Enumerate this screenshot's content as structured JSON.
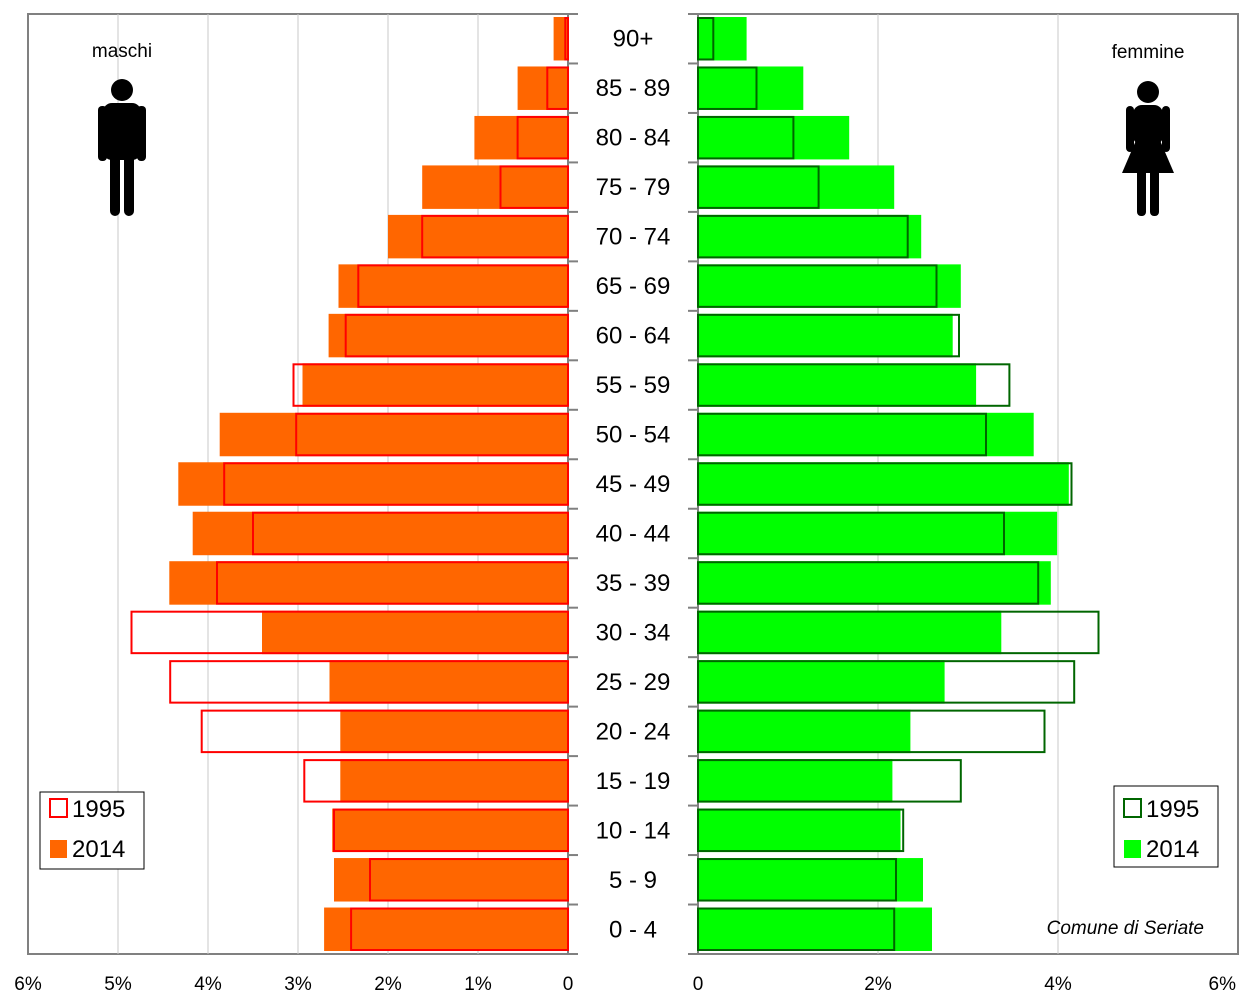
{
  "chart_data": {
    "type": "bar",
    "categories": [
      "0 - 4",
      "5 - 9",
      "10 - 14",
      "15 - 19",
      "20 - 24",
      "25 - 29",
      "30 - 34",
      "35 - 39",
      "40 - 44",
      "45 - 49",
      "50 - 54",
      "55 - 59",
      "60 - 64",
      "65 - 69",
      "70 - 74",
      "75 - 79",
      "80 - 84",
      "85 - 89",
      "90+"
    ],
    "left_panel": {
      "label": "maschi",
      "xlim": [
        0,
        6
      ],
      "ticks": [
        "0",
        "1%",
        "2%",
        "3%",
        "4%",
        "5%",
        "6%"
      ],
      "series": [
        {
          "name": "1995",
          "style": "outline",
          "color": "#ff0000",
          "values": [
            2.41,
            2.2,
            2.6,
            2.93,
            4.07,
            4.42,
            4.85,
            3.9,
            3.5,
            3.82,
            3.02,
            3.05,
            2.47,
            2.33,
            1.62,
            0.75,
            0.56,
            0.23,
            0.03
          ]
        },
        {
          "name": "2014",
          "style": "filled",
          "color": "#ff6600",
          "values": [
            2.71,
            2.6,
            2.62,
            2.53,
            2.53,
            2.65,
            3.4,
            4.43,
            4.17,
            4.33,
            3.87,
            2.95,
            2.66,
            2.55,
            2.0,
            1.62,
            1.04,
            0.56,
            0.16
          ]
        }
      ],
      "legend": [
        "1995",
        "2014"
      ]
    },
    "right_panel": {
      "label": "femmine",
      "xlim": [
        0,
        6
      ],
      "ticks": [
        "0",
        "2%",
        "4%",
        "6%"
      ],
      "series": [
        {
          "name": "1995",
          "style": "outline",
          "color": "#006600",
          "values": [
            2.18,
            2.2,
            2.28,
            2.92,
            3.85,
            4.18,
            4.45,
            3.78,
            3.4,
            4.15,
            3.2,
            3.46,
            2.9,
            2.65,
            2.33,
            1.34,
            1.06,
            0.65,
            0.17
          ]
        },
        {
          "name": "2014",
          "style": "filled",
          "color": "#00ff00",
          "values": [
            2.6,
            2.5,
            2.25,
            2.16,
            2.36,
            2.74,
            3.37,
            3.92,
            3.99,
            4.12,
            3.73,
            3.09,
            2.83,
            2.92,
            2.48,
            2.18,
            1.68,
            1.17,
            0.54
          ]
        }
      ],
      "legend": [
        "1995",
        "2014"
      ],
      "annotation": "Comune di Seriate"
    },
    "grid": true,
    "legend_position": "bottom-left (maschi), bottom-right (femmine)"
  },
  "icons": {
    "male": "male-figure-icon",
    "female": "female-figure-icon"
  },
  "colors": {
    "grid": "#c8c8c8",
    "axis": "#808080"
  }
}
